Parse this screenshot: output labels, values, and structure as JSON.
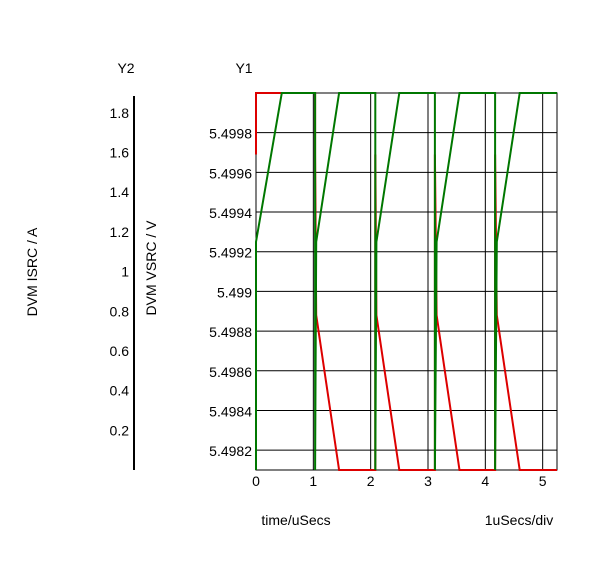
{
  "chart_data": {
    "type": "line",
    "axes": {
      "y2": {
        "title": "Y2",
        "label": "DVM ISRC / A",
        "ticks": [
          0.2,
          0.4,
          0.6,
          0.8,
          1,
          1.2,
          1.4,
          1.6,
          1.8
        ],
        "tick_labels": [
          "0.2",
          "0.4",
          "0.6",
          "0.8",
          "1",
          "1.2",
          "1.4",
          "1.6",
          "1.8"
        ],
        "range": [
          0,
          1.9
        ]
      },
      "y1": {
        "title": "Y1",
        "label": "DVM VSRC / V",
        "ticks": [
          5.4982,
          5.4984,
          5.4986,
          5.4988,
          5.499,
          5.4992,
          5.4994,
          5.4996,
          5.4998
        ],
        "tick_labels": [
          "5.4982",
          "5.4984",
          "5.4986",
          "5.4988",
          "5.499",
          "5.4992",
          "5.4994",
          "5.4996",
          "5.4998"
        ],
        "range": [
          5.4981,
          5.5
        ]
      },
      "x": {
        "label": "time/uSecs",
        "scale_label": "1uSecs/div",
        "ticks": [
          0,
          1,
          2,
          3,
          4,
          5
        ],
        "tick_labels": [
          "0",
          "1",
          "2",
          "3",
          "4",
          "5"
        ],
        "range": [
          0,
          5.25
        ]
      }
    },
    "grid": true,
    "series": [
      {
        "axis": "y2",
        "color": "#dd0000",
        "x": [
          0,
          0,
          0.45,
          0.45,
          1.03,
          1.03,
          1.05,
          1.05,
          1.45,
          1.45,
          2.08,
          2.08,
          2.1,
          2.1,
          2.5,
          2.5,
          3.12,
          3.12,
          3.15,
          3.15,
          3.55,
          3.55,
          4.17,
          4.17,
          4.2,
          4.2,
          4.6,
          4.6,
          5.25
        ],
        "y": [
          1.59,
          1.9,
          1.9,
          1.9,
          1.9,
          1.59,
          0.78,
          0.78,
          0,
          0,
          0,
          1.59,
          0.78,
          0.78,
          0,
          0,
          0,
          1.59,
          0.78,
          0.78,
          0,
          0,
          0,
          1.59,
          0.78,
          0.78,
          0,
          0,
          0
        ]
      },
      {
        "axis": "y1",
        "color": "#007700",
        "x": [
          0,
          0,
          0.45,
          1.03,
          1.03,
          1.05,
          1.45,
          1.45,
          2.08,
          2.08,
          2.1,
          2.5,
          2.5,
          3.12,
          3.12,
          3.15,
          3.55,
          3.55,
          4.17,
          4.17,
          4.2,
          4.6,
          4.6,
          5.25
        ],
        "y": [
          5.4981,
          5.49925,
          5.5,
          5.5,
          5.4981,
          5.49925,
          5.5,
          5.5,
          5.5,
          5.4981,
          5.49925,
          5.5,
          5.5,
          5.5,
          5.4981,
          5.49925,
          5.5,
          5.5,
          5.5,
          5.4981,
          5.49925,
          5.5,
          5.5,
          5.5
        ]
      }
    ]
  }
}
